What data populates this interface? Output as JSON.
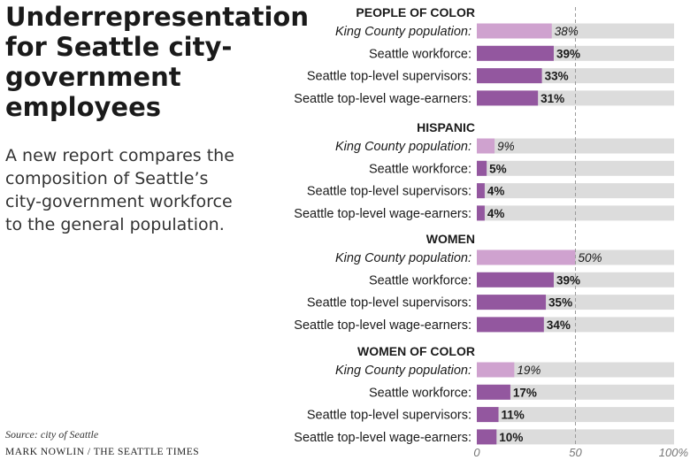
{
  "header": {
    "title": "Underrepresentation for Seattle city-government employees",
    "subtitle": "A new report compares the composition of Seattle’s city-government workforce to the general population."
  },
  "footer": {
    "source": "Source: city of Seattle",
    "credit": "MARK NOWLIN / THE SEATTLE TIMES"
  },
  "colors": {
    "population_bar": "#cfa2cf",
    "workforce_bar": "#93579f",
    "track": "#dcdcdc",
    "reference_line": "#9a9a9a"
  },
  "chart_data": {
    "type": "bar",
    "orientation": "horizontal",
    "xlim": [
      0,
      100
    ],
    "xticks": [
      0,
      50,
      100
    ],
    "xtick_labels": [
      "0",
      "50",
      "100%"
    ],
    "reference_line": 50,
    "groups": [
      {
        "title": "PEOPLE OF COLOR",
        "categories": [
          "King County population:",
          "Seattle workforce:",
          "Seattle top-level supervisors:",
          "Seattle top-level wage-earners:"
        ],
        "values": [
          38,
          39,
          33,
          31
        ],
        "labels": [
          "38%",
          "39%",
          "33%",
          "31%"
        ]
      },
      {
        "title": "HISPANIC",
        "categories": [
          "King County population:",
          "Seattle workforce:",
          "Seattle top-level supervisors:",
          "Seattle top-level wage-earners:"
        ],
        "values": [
          9,
          5,
          4,
          4
        ],
        "labels": [
          "9%",
          "5%",
          "4%",
          "4%"
        ]
      },
      {
        "title": "WOMEN",
        "categories": [
          "King County population:",
          "Seattle workforce:",
          "Seattle top-level supervisors:",
          "Seattle top-level wage-earners:"
        ],
        "values": [
          50,
          39,
          35,
          34
        ],
        "labels": [
          "50%",
          "39%",
          "35%",
          "34%"
        ]
      },
      {
        "title": "WOMEN OF COLOR",
        "categories": [
          "King County population:",
          "Seattle workforce:",
          "Seattle top-level supervisors:",
          "Seattle top-level wage-earners:"
        ],
        "values": [
          19,
          17,
          11,
          10
        ],
        "labels": [
          "19%",
          "17%",
          "11%",
          "10%"
        ]
      }
    ]
  }
}
